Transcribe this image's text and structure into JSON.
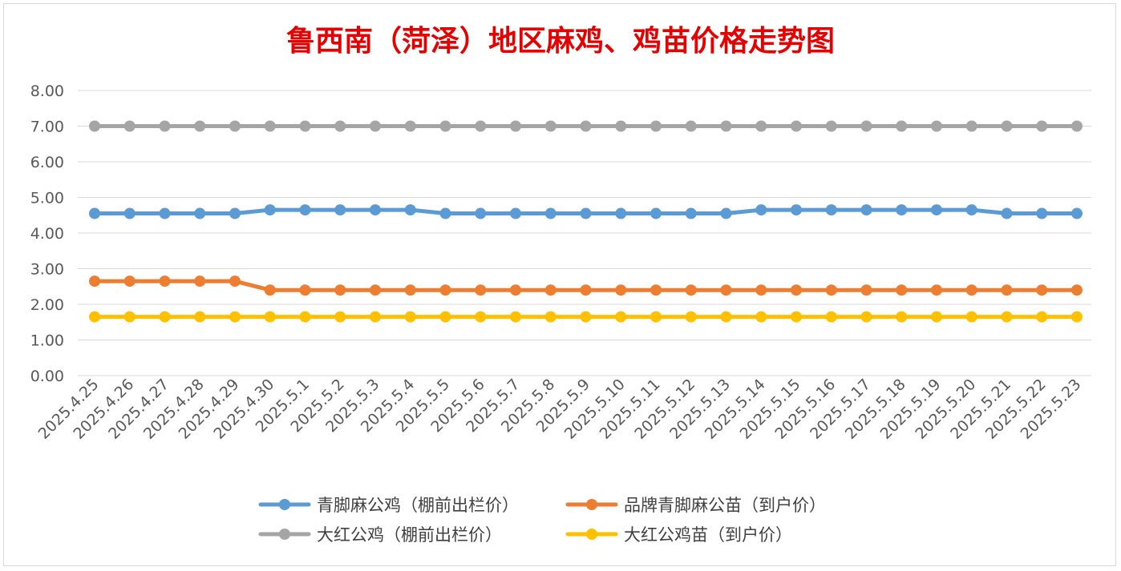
{
  "chart_data": {
    "type": "line",
    "title": "鲁西南（菏泽）地区麻鸡、鸡苗价格走势图",
    "xlabel": "",
    "ylabel": "",
    "ylim": [
      0,
      8
    ],
    "yticks": [
      "0.00",
      "1.00",
      "2.00",
      "3.00",
      "4.00",
      "5.00",
      "6.00",
      "7.00",
      "8.00"
    ],
    "grid": true,
    "legend_position": "bottom",
    "categories": [
      "2025.4.25",
      "2025.4.26",
      "2025.4.27",
      "2025.4.28",
      "2025.4.29",
      "2025.4.30",
      "2025.5.1",
      "2025.5.2",
      "2025.5.3",
      "2025.5.4",
      "2025.5.5",
      "2025.5.6",
      "2025.5.7",
      "2025.5.8",
      "2025.5.9",
      "2025.5.10",
      "2025.5.11",
      "2025.5.12",
      "2025.5.13",
      "2025.5.14",
      "2025.5.15",
      "2025.5.16",
      "2025.5.17",
      "2025.5.18",
      "2025.5.19",
      "2025.5.20",
      "2025.5.21",
      "2025.5.22",
      "2025.5.23"
    ],
    "series": [
      {
        "name": "青脚麻公鸡（棚前出栏价）",
        "color": "#5b9bd5",
        "values": [
          4.55,
          4.55,
          4.55,
          4.55,
          4.55,
          4.65,
          4.65,
          4.65,
          4.65,
          4.65,
          4.55,
          4.55,
          4.55,
          4.55,
          4.55,
          4.55,
          4.55,
          4.55,
          4.55,
          4.65,
          4.65,
          4.65,
          4.65,
          4.65,
          4.65,
          4.65,
          4.55,
          4.55,
          4.55
        ]
      },
      {
        "name": "品牌青脚麻公苗（到户价）",
        "color": "#ed7d31",
        "values": [
          2.65,
          2.65,
          2.65,
          2.65,
          2.65,
          2.4,
          2.4,
          2.4,
          2.4,
          2.4,
          2.4,
          2.4,
          2.4,
          2.4,
          2.4,
          2.4,
          2.4,
          2.4,
          2.4,
          2.4,
          2.4,
          2.4,
          2.4,
          2.4,
          2.4,
          2.4,
          2.4,
          2.4,
          2.4
        ]
      },
      {
        "name": "大红公鸡（棚前出栏价）",
        "color": "#a5a5a5",
        "values": [
          7.0,
          7.0,
          7.0,
          7.0,
          7.0,
          7.0,
          7.0,
          7.0,
          7.0,
          7.0,
          7.0,
          7.0,
          7.0,
          7.0,
          7.0,
          7.0,
          7.0,
          7.0,
          7.0,
          7.0,
          7.0,
          7.0,
          7.0,
          7.0,
          7.0,
          7.0,
          7.0,
          7.0,
          7.0
        ]
      },
      {
        "name": "大红公鸡苗（到户价）",
        "color": "#ffc000",
        "values": [
          1.65,
          1.65,
          1.65,
          1.65,
          1.65,
          1.65,
          1.65,
          1.65,
          1.65,
          1.65,
          1.65,
          1.65,
          1.65,
          1.65,
          1.65,
          1.65,
          1.65,
          1.65,
          1.65,
          1.65,
          1.65,
          1.65,
          1.65,
          1.65,
          1.65,
          1.65,
          1.65,
          1.65,
          1.65
        ]
      }
    ]
  }
}
